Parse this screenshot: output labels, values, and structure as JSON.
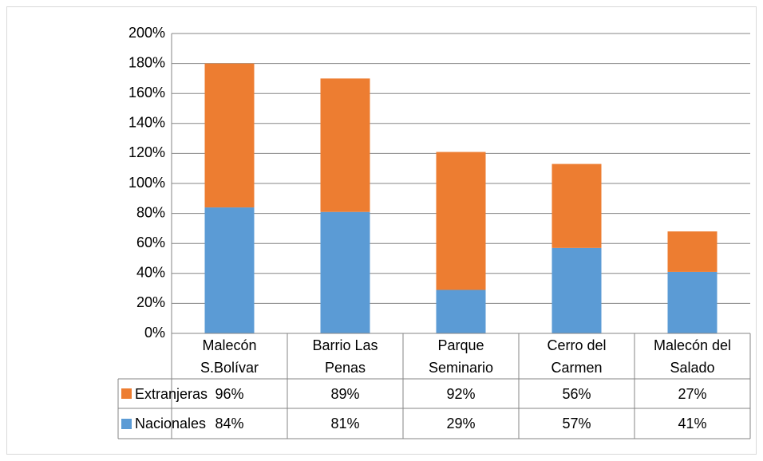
{
  "chart_data": {
    "type": "stacked_bar",
    "categories": [
      "Malecón S.Bolívar",
      "Barrio Las Penas",
      "Parque Seminario",
      "Cerro del Carmen",
      "Malecón del Salado"
    ],
    "series": [
      {
        "name": "Nacionales",
        "color": "#5b9bd5",
        "values": [
          84,
          81,
          29,
          57,
          41
        ],
        "value_labels": [
          "84%",
          "81%",
          "29%",
          "57%",
          "41%"
        ]
      },
      {
        "name": "Extranjeras",
        "color": "#ed7d31",
        "values": [
          96,
          89,
          92,
          56,
          27
        ],
        "value_labels": [
          "96%",
          "89%",
          "92%",
          "56%",
          "27%"
        ]
      }
    ],
    "ylim": [
      0,
      200
    ],
    "yticks": [
      {
        "value": 0,
        "label": "0%"
      },
      {
        "value": 20,
        "label": "20%"
      },
      {
        "value": 40,
        "label": "40%"
      },
      {
        "value": 60,
        "label": "60%"
      },
      {
        "value": 80,
        "label": "80%"
      },
      {
        "value": 100,
        "label": "100%"
      },
      {
        "value": 120,
        "label": "120%"
      },
      {
        "value": 140,
        "label": "140%"
      },
      {
        "value": 160,
        "label": "160%"
      },
      {
        "value": 180,
        "label": "180%"
      },
      {
        "value": 200,
        "label": "200%"
      }
    ],
    "grid": true,
    "data_table": true
  }
}
